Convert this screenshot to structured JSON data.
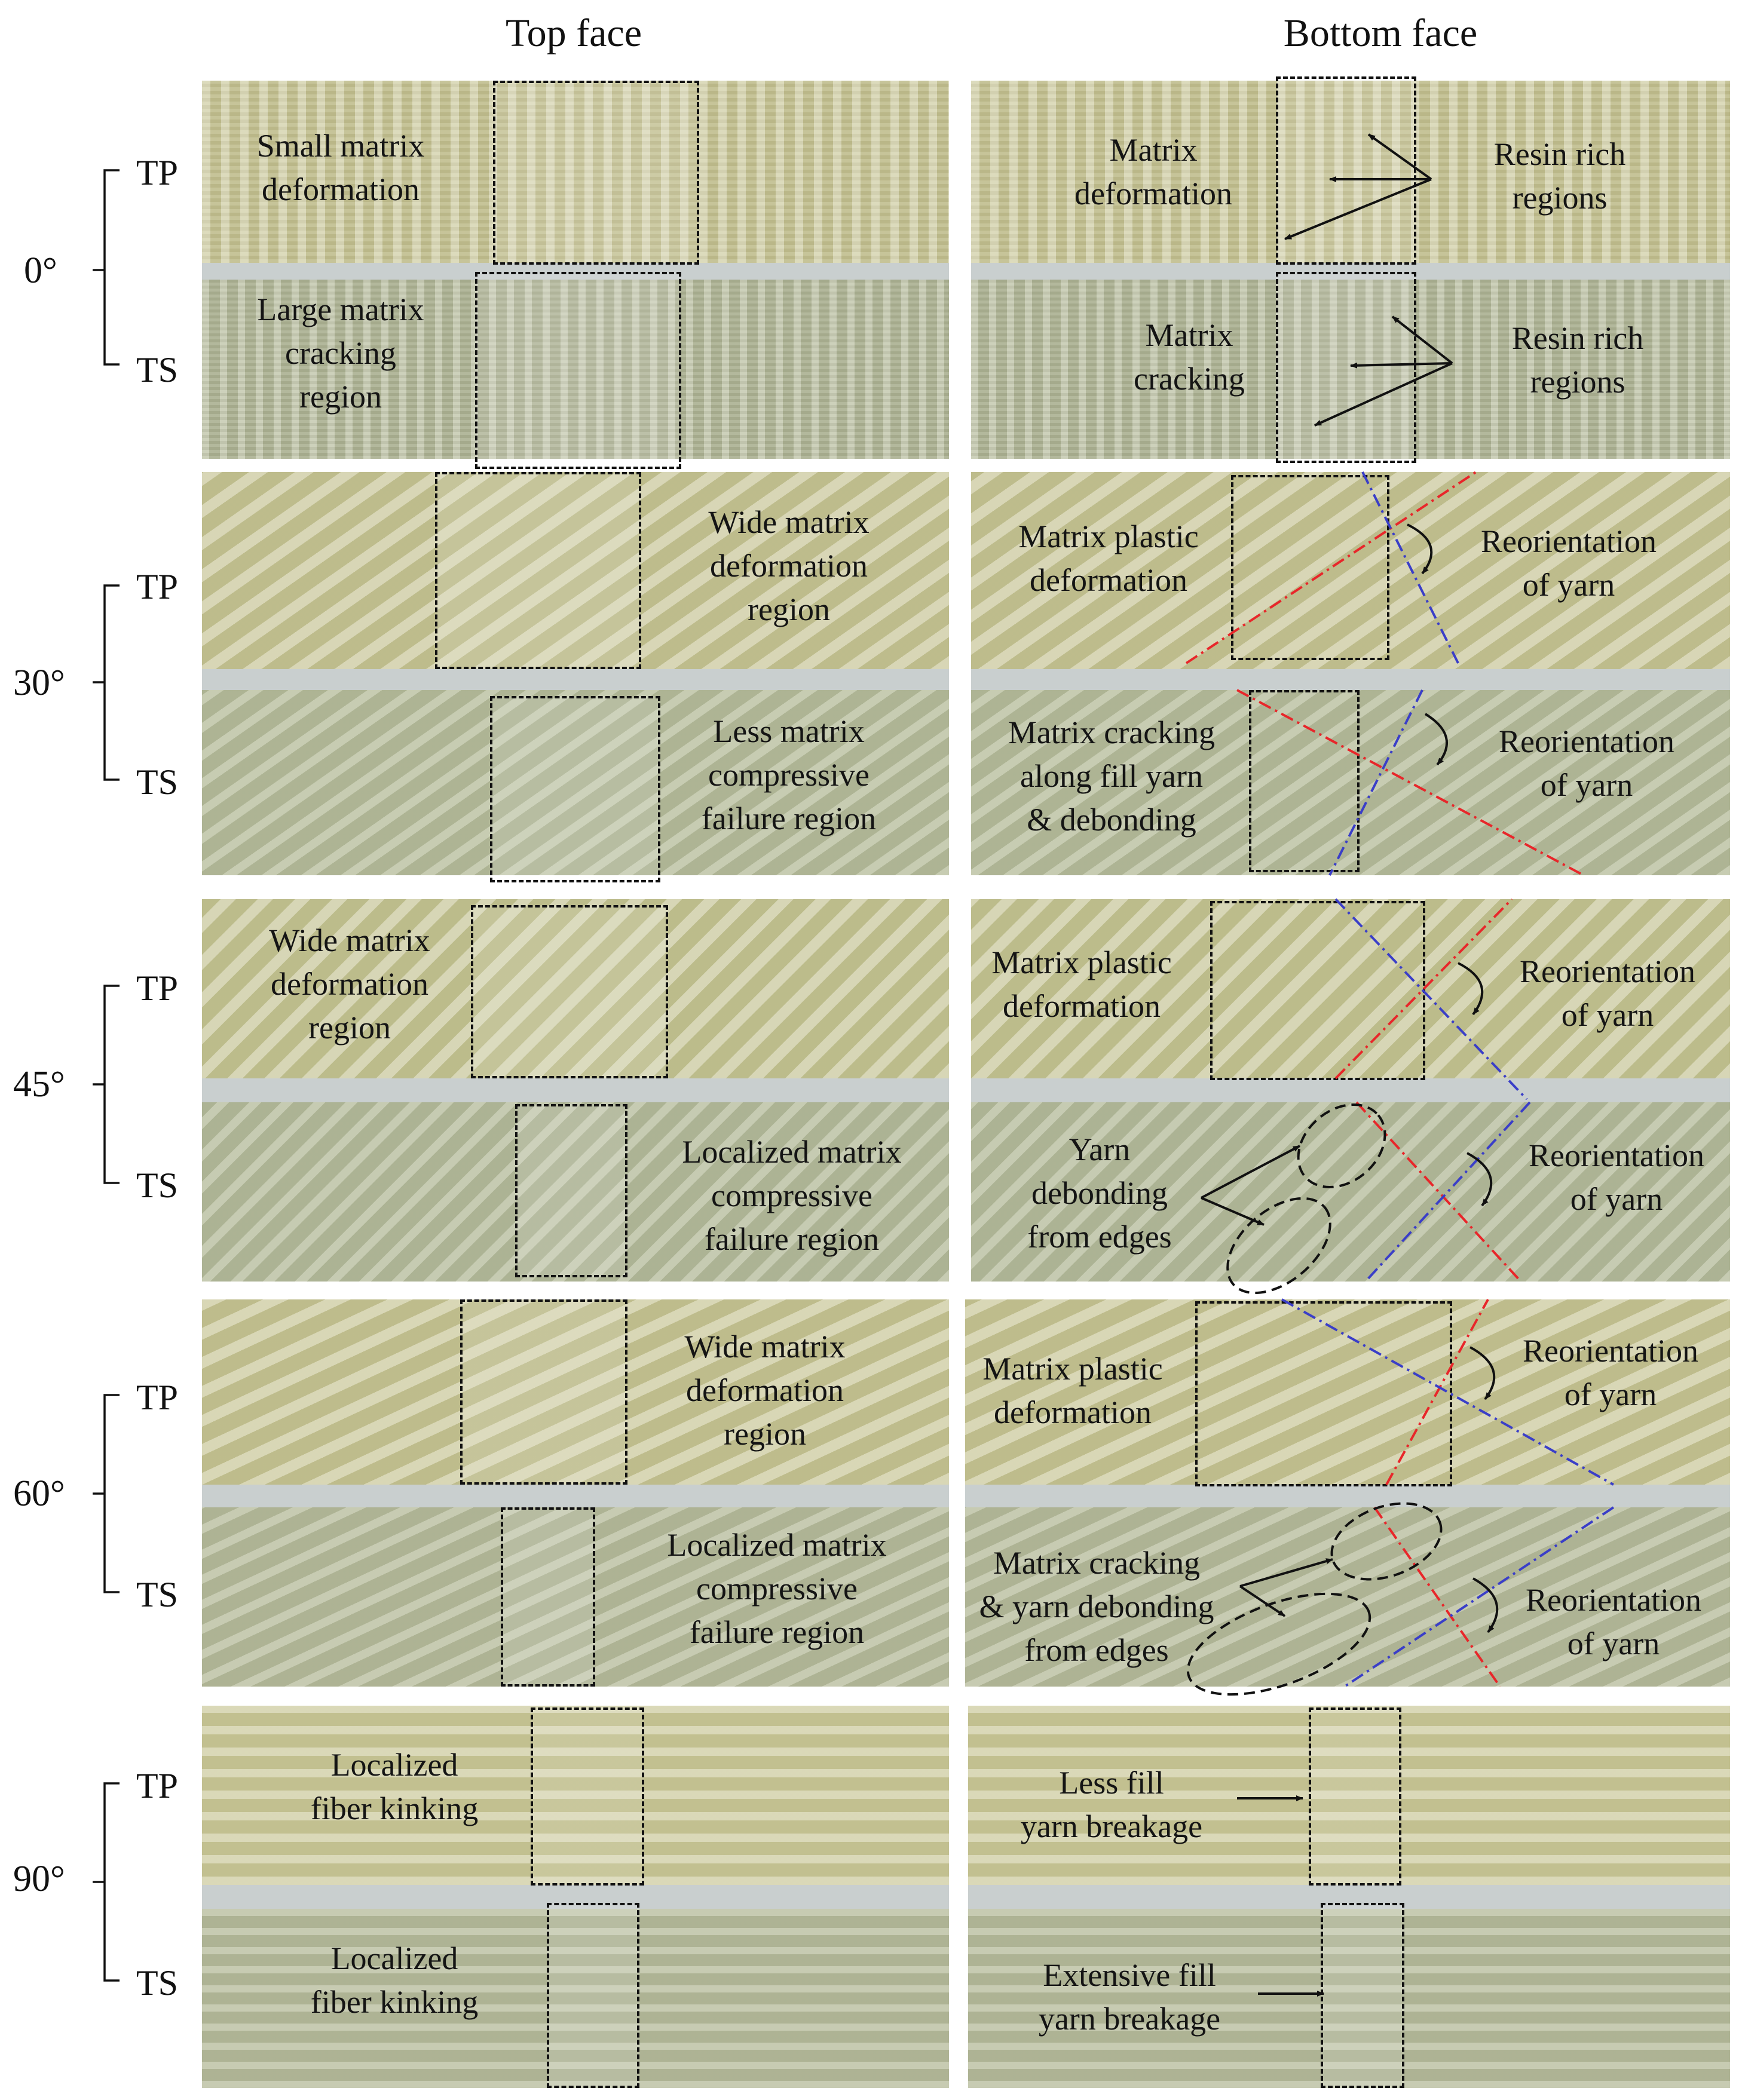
{
  "headers": {
    "top_face": "Top face",
    "bottom_face": "Bottom face"
  },
  "rows": [
    {
      "angle": "0°",
      "tp": "TP",
      "ts": "TS",
      "top_tp": "Small matrix\ndeformation",
      "top_ts": "Large matrix\ncracking\nregion",
      "bot_tp": "Matrix\ndeformation",
      "bot_tp_2": "Resin rich\nregions",
      "bot_ts": "Matrix\ncracking",
      "bot_ts_2": "Resin rich\nregions"
    },
    {
      "angle": "30°",
      "tp": "TP",
      "ts": "TS",
      "top_tp": "Wide matrix\ndeformation\nregion",
      "top_ts": "Less matrix\ncompressive\nfailure region",
      "bot_tp": "Matrix plastic\ndeformation",
      "bot_tp_2": "Reorientation\nof yarn",
      "bot_ts": "Matrix cracking\nalong fill yarn\n& debonding",
      "bot_ts_2": "Reorientation\nof yarn"
    },
    {
      "angle": "45°",
      "tp": "TP",
      "ts": "TS",
      "top_tp": "Wide matrix\ndeformation\nregion",
      "top_ts": "Localized matrix\ncompressive\nfailure region",
      "bot_tp": "Matrix plastic\ndeformation",
      "bot_tp_2": "Reorientation\nof yarn",
      "bot_ts": "Yarn\ndebonding\nfrom edges",
      "bot_ts_2": "Reorientation\nof yarn"
    },
    {
      "angle": "60°",
      "tp": "TP",
      "ts": "TS",
      "top_tp": "Wide matrix\ndeformation\nregion",
      "top_ts": "Localized matrix\ncompressive\nfailure region",
      "bot_tp": "Matrix plastic\ndeformation",
      "bot_tp_2": "Reorientation\nof yarn",
      "bot_ts": "Matrix cracking\n& yarn debonding\nfrom edges",
      "bot_ts_2": "Reorientation\nof yarn"
    },
    {
      "angle": "90°",
      "tp": "TP",
      "ts": "TS",
      "top_tp": "Localized\nfiber kinking",
      "top_ts": "Localized\nfiber kinking",
      "bot_tp": "Less fill\nyarn breakage",
      "bot_ts": "Extensive fill\nyarn breakage"
    }
  ],
  "colors": {
    "red_dashdot": "#e8262a",
    "blue_dashdot": "#3a3ec8",
    "dashed_box": "#111111"
  }
}
